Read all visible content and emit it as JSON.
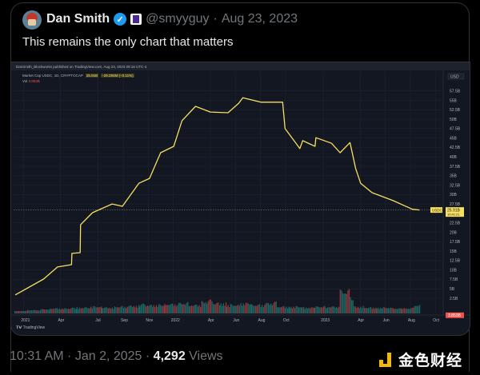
{
  "tweet": {
    "author_name": "Dan Smith",
    "handle": "@smyyguy",
    "separator": "·",
    "date": "Aug 23, 2023",
    "text": "This remains the only chart that matters",
    "time": "10:31 AM · Jan 2, 2025 · ",
    "views_count": "4,292",
    "views_label": " Views",
    "verified_icon": "verified-check",
    "affiliate_badge": "blockworks-badge"
  },
  "watermark": {
    "text": "金色财经"
  },
  "chart_meta": {
    "published": "DanSmith_Blockworks published on TradingView.com, Aug 23, 2023 09:18 UTC-4",
    "legend_label": "Market Cap USDC, 1D, CRYPTOCAP",
    "legend_value": "25.91B",
    "legend_change": "−29.294M (−0.11%)",
    "vol_label": "Vol",
    "vol_value": "3.853B",
    "currency": "USD",
    "symbol_tag": "USDC",
    "price_tag": "25.91B",
    "countdown": "10:41:21",
    "brand": "TradingView",
    "line_color": "#f6e05e",
    "up_color": "#26a69a",
    "down_color": "#ef5350",
    "background": "#131722"
  },
  "chart_data": {
    "type": "line",
    "title": "",
    "series": [
      {
        "points": [
          [
            "2020-12-12",
            3.4
          ],
          [
            "2021-02-19",
            7.6
          ],
          [
            "2021-03-25",
            10.8
          ],
          [
            "2021-04-28",
            11.4
          ],
          [
            "2021-04-29",
            14.4
          ],
          [
            "2021-05-19",
            14.6
          ],
          [
            "2021-05-20",
            22.0
          ],
          [
            "2021-06-18",
            25.2
          ],
          [
            "2021-08-05",
            27.5
          ],
          [
            "2021-08-30",
            26.9
          ],
          [
            "2021-10-09",
            33.0
          ],
          [
            "2021-11-04",
            34.3
          ],
          [
            "2021-12-01",
            41.1
          ],
          [
            "2022-01-02",
            42.8
          ],
          [
            "2022-01-22",
            49.6
          ],
          [
            "2022-02-24",
            53.4
          ],
          [
            "2022-04-01",
            51.9
          ],
          [
            "2022-05-14",
            51.7
          ],
          [
            "2022-06-09",
            54.2
          ],
          [
            "2022-06-19",
            55.7
          ],
          [
            "2022-08-02",
            54.5
          ],
          [
            "2022-09-24",
            54.5
          ],
          [
            "2022-09-30",
            47.5
          ],
          [
            "2022-11-05",
            42.2
          ],
          [
            "2022-11-12",
            44.3
          ],
          [
            "2022-12-12",
            42.8
          ],
          [
            "2022-12-14",
            45.1
          ],
          [
            "2023-01-21",
            43.6
          ],
          [
            "2023-02-11",
            41.1
          ],
          [
            "2023-03-07",
            43.8
          ],
          [
            "2023-03-21",
            36.9
          ],
          [
            "2023-04-02",
            33.0
          ],
          [
            "2023-04-30",
            30.5
          ],
          [
            "2023-06-20",
            28.4
          ],
          [
            "2023-08-06",
            26.1
          ],
          [
            "2023-08-23",
            25.91
          ]
        ]
      }
    ],
    "volume_monthly": [
      0.5,
      1,
      1.5,
      2,
      2,
      2.5,
      3,
      2.5,
      3,
      3.5,
      4,
      4,
      4.5,
      5,
      4,
      6,
      5,
      4,
      5,
      4,
      5,
      3,
      3,
      2.5,
      3,
      3,
      12,
      3,
      2.5,
      2.5,
      2,
      2,
      3.853
    ],
    "ylim": [
      0,
      60
    ],
    "y_ticks": [
      "57.5B",
      "55B",
      "52.5B",
      "50B",
      "47.5B",
      "45B",
      "42.5B",
      "40B",
      "37.5B",
      "35B",
      "32.5B",
      "30B",
      "27.5B",
      "22.5B",
      "20B",
      "17.5B",
      "15B",
      "12.5B",
      "10B",
      "7.5B",
      "5B",
      "2.5B"
    ],
    "y_tick_values": [
      57.5,
      55,
      52.5,
      50,
      47.5,
      45,
      42.5,
      40,
      37.5,
      35,
      32.5,
      30,
      27.5,
      22.5,
      20,
      17.5,
      15,
      12.5,
      10,
      7.5,
      5,
      2.5
    ],
    "x_ticks": [
      "2021",
      "Apr",
      "Jul",
      "Sep",
      "Nov",
      "2022",
      "Apr",
      "Jun",
      "Aug",
      "Oct",
      "2023",
      "Apr",
      "Jun",
      "Aug",
      "Oct"
    ],
    "x_tick_dates": [
      "2021-01-01",
      "2021-04-01",
      "2021-07-01",
      "2021-09-01",
      "2021-11-01",
      "2022-01-01",
      "2022-04-01",
      "2022-06-01",
      "2022-08-01",
      "2022-10-01",
      "2023-01-01",
      "2023-04-01",
      "2023-06-01",
      "2023-08-01",
      "2023-10-01"
    ],
    "xlim": [
      "2020-12-08",
      "2023-10-20"
    ],
    "grid": true,
    "last_value": 25.91
  }
}
